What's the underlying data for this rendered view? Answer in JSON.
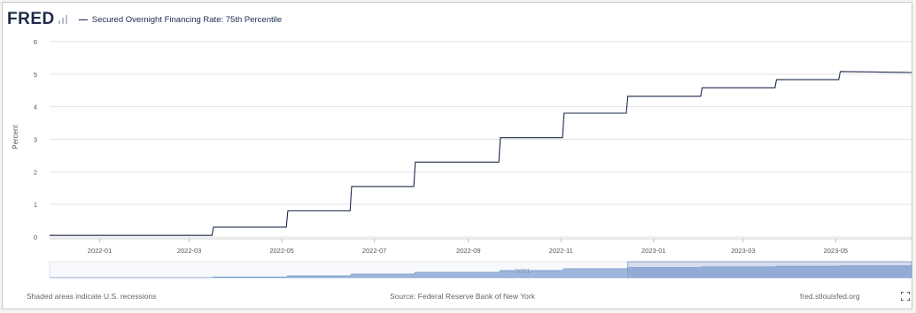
{
  "app": {
    "logo_text": "FRED"
  },
  "chart_data": {
    "type": "line",
    "title": "",
    "legend": "Secured Overnight Financing Rate: 75th Percentile",
    "ylabel": "Percent",
    "xlabel": "",
    "y_ticks": [
      "0",
      "1",
      "2",
      "3",
      "4",
      "5",
      "6"
    ],
    "ylim": [
      0,
      6
    ],
    "x_ticks": [
      "2022-01",
      "2022-03",
      "2022-05",
      "2022-07",
      "2022-09",
      "2022-11",
      "2023-01",
      "2023-03",
      "2023-05"
    ],
    "xlim": [
      "2021-11-29",
      "2023-06-20"
    ],
    "grid": "horizontal",
    "series": [
      {
        "color": "#1b2a4a",
        "points": [
          [
            "2021-11-29",
            0.05
          ],
          [
            "2022-03-16",
            0.05
          ],
          [
            "2022-03-17",
            0.3
          ],
          [
            "2022-05-04",
            0.3
          ],
          [
            "2022-05-05",
            0.8
          ],
          [
            "2022-06-15",
            0.8
          ],
          [
            "2022-06-16",
            1.55
          ],
          [
            "2022-07-27",
            1.55
          ],
          [
            "2022-07-28",
            2.3
          ],
          [
            "2022-09-21",
            2.3
          ],
          [
            "2022-09-22",
            3.05
          ],
          [
            "2022-11-02",
            3.05
          ],
          [
            "2022-11-03",
            3.8
          ],
          [
            "2022-12-14",
            3.8
          ],
          [
            "2022-12-15",
            4.32
          ],
          [
            "2023-02-01",
            4.32
          ],
          [
            "2023-02-02",
            4.58
          ],
          [
            "2023-03-22",
            4.58
          ],
          [
            "2023-03-23",
            4.83
          ],
          [
            "2023-05-03",
            4.83
          ],
          [
            "2023-05-04",
            5.08
          ],
          [
            "2023-06-20",
            5.05
          ]
        ]
      }
    ],
    "navigator": {
      "label": "2021",
      "window_start": "2022-12-15",
      "window_end": "2023-06-20"
    }
  },
  "footer": {
    "note": "Shaded areas indicate U.S. recessions",
    "source": "Source: Federal Reserve Bank of New York",
    "site": "fred.stlouisfed.org"
  }
}
